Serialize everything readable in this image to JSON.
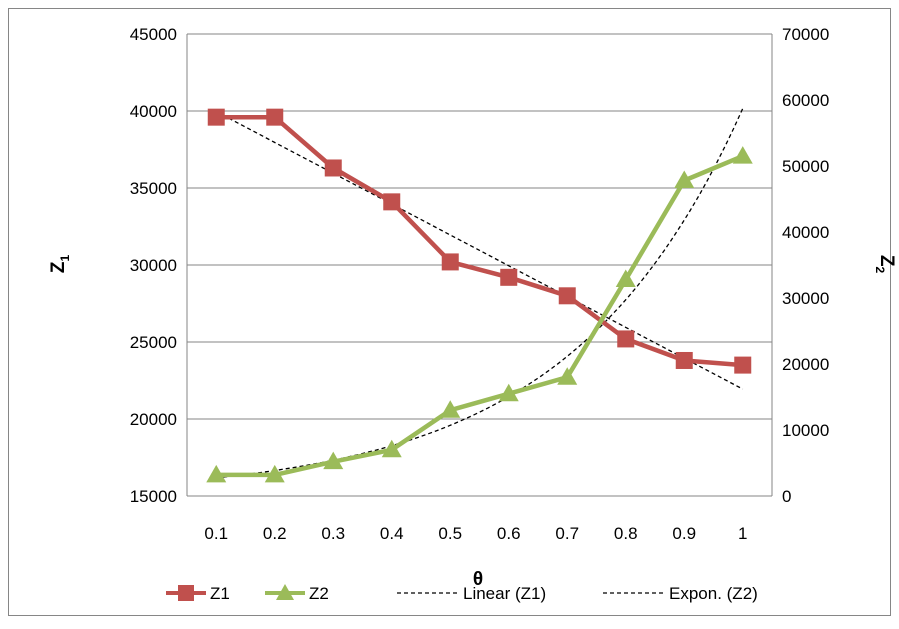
{
  "chart_data": {
    "type": "line",
    "x": [
      0.1,
      0.2,
      0.3,
      0.4,
      0.5,
      0.6,
      0.7,
      0.8,
      0.9,
      1
    ],
    "x_tick_labels": [
      "0.1",
      "0.2",
      "0.3",
      "0.4",
      "0.5",
      "0.6",
      "0.7",
      "0.8",
      "0.9",
      "1"
    ],
    "xlabel": "θ",
    "ylabel_left": "Z",
    "ylabel_left_sub": "1",
    "ylabel_right": "Z",
    "ylabel_right_sub": "2",
    "ylim_left": [
      15000,
      45000
    ],
    "ylim_right": [
      0,
      70000
    ],
    "y_left_ticks": [
      "15000",
      "20000",
      "25000",
      "30000",
      "35000",
      "40000",
      "45000"
    ],
    "y_right_ticks": [
      "0",
      "10000",
      "20000",
      "30000",
      "40000",
      "50000",
      "60000",
      "70000"
    ],
    "grid": true,
    "legend_position": "bottom",
    "series": [
      {
        "name": "Z1",
        "axis": "left",
        "color": "#C0504D",
        "marker": "square",
        "values": [
          39600,
          39600,
          36300,
          34100,
          30200,
          29200,
          28000,
          25200,
          23800,
          23500
        ]
      },
      {
        "name": "Z2",
        "axis": "right",
        "color": "#9BBB59",
        "marker": "triangle",
        "values": [
          3200,
          3200,
          5200,
          7000,
          13000,
          15500,
          18000,
          32800,
          47800,
          51500
        ]
      }
    ],
    "trendlines": [
      {
        "name": "Linear (Z1)",
        "type": "linear",
        "of": "Z1",
        "color": "#000000"
      },
      {
        "name": "Expon. (Z2)",
        "type": "exponential",
        "of": "Z2",
        "color": "#000000"
      }
    ]
  }
}
